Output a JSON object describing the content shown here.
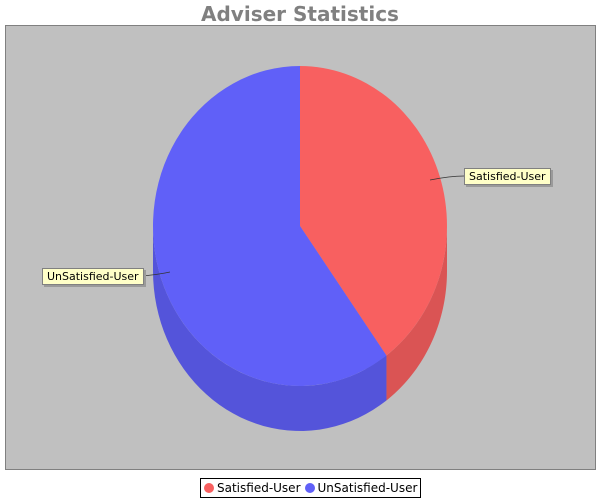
{
  "chart_data": {
    "type": "pie",
    "title": "Adviser Statistics",
    "slices": [
      {
        "label": "Satisfied-User",
        "value": 40,
        "color": "#f86060"
      },
      {
        "label": "UnSatisfied-User",
        "value": 60,
        "color": "#6060f8"
      }
    ],
    "legend_position": "bottom",
    "plot_background": "#c0c0c0",
    "three_d": true
  }
}
